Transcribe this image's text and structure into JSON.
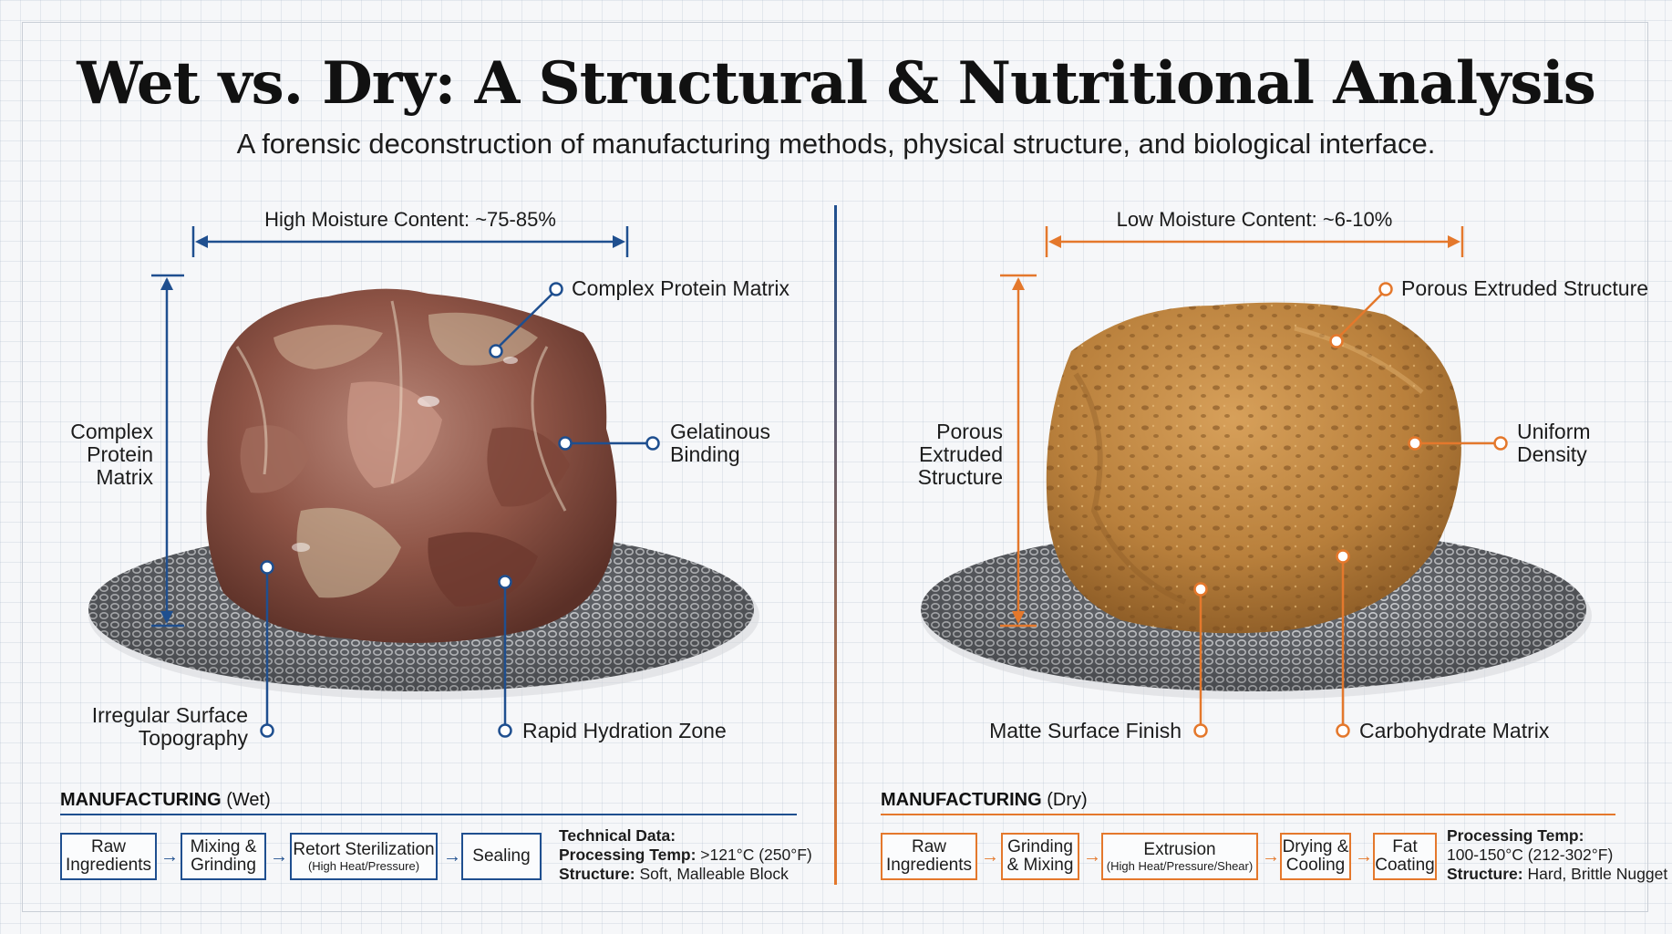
{
  "header": {
    "title": "Wet vs. Dry: A Structural & Nutritional Analysis",
    "subtitle": "A forensic deconstruction of manufacturing methods, physical structure, and biological interface."
  },
  "colors": {
    "wet": "#1f4f8f",
    "dry": "#e4782c"
  },
  "wet": {
    "moisture_label": "High Moisture Content: ~75-85%",
    "side_label_lines": [
      "Complex",
      "Protein",
      "Matrix"
    ],
    "callouts": {
      "protein_matrix": "Complex Protein Matrix",
      "gelatinous_lines": [
        "Gelatinous",
        "Binding"
      ],
      "irregular_lines": [
        "Irregular Surface",
        "Topography"
      ],
      "rapid_hydration": "Rapid Hydration Zone"
    },
    "manufacturing": {
      "heading": "MANUFACTURING",
      "type": "(Wet)",
      "steps": [
        {
          "lines": [
            "Raw",
            "Ingredients"
          ],
          "note": ""
        },
        {
          "lines": [
            "Mixing &",
            "Grinding"
          ],
          "note": ""
        },
        {
          "lines": [
            "Retort Sterilization"
          ],
          "note": "(High Heat/Pressure)"
        },
        {
          "lines": [
            "Sealing"
          ],
          "note": ""
        }
      ],
      "tech_title": "Technical Data:",
      "temp_label": "Processing Temp:",
      "temp_value": ">121°C (250°F)",
      "structure_label": "Structure:",
      "structure_value": "Soft, Malleable Block"
    }
  },
  "dry": {
    "moisture_label": "Low Moisture Content: ~6-10%",
    "side_label_lines": [
      "Porous",
      "Extruded",
      "Structure"
    ],
    "callouts": {
      "porous": "Porous Extruded Structure",
      "uniform_lines": [
        "Uniform",
        "Density"
      ],
      "matte": "Matte Surface Finish",
      "carbohydrate": "Carbohydrate Matrix"
    },
    "manufacturing": {
      "heading": "MANUFACTURING",
      "type": "(Dry)",
      "steps": [
        {
          "lines": [
            "Raw",
            "Ingredients"
          ],
          "note": ""
        },
        {
          "lines": [
            "Grinding",
            "& Mixing"
          ],
          "note": ""
        },
        {
          "lines": [
            "Extrusion"
          ],
          "note": "(High Heat/Pressure/Shear)"
        },
        {
          "lines": [
            "Drying &",
            "Cooling"
          ],
          "note": ""
        },
        {
          "lines": [
            "Fat",
            "Coating"
          ],
          "note": ""
        }
      ],
      "temp_label": "Processing Temp:",
      "temp_value": "100-150°C (212-302°F)",
      "structure_label": "Structure:",
      "structure_value": "Hard, Brittle Nugget"
    }
  }
}
